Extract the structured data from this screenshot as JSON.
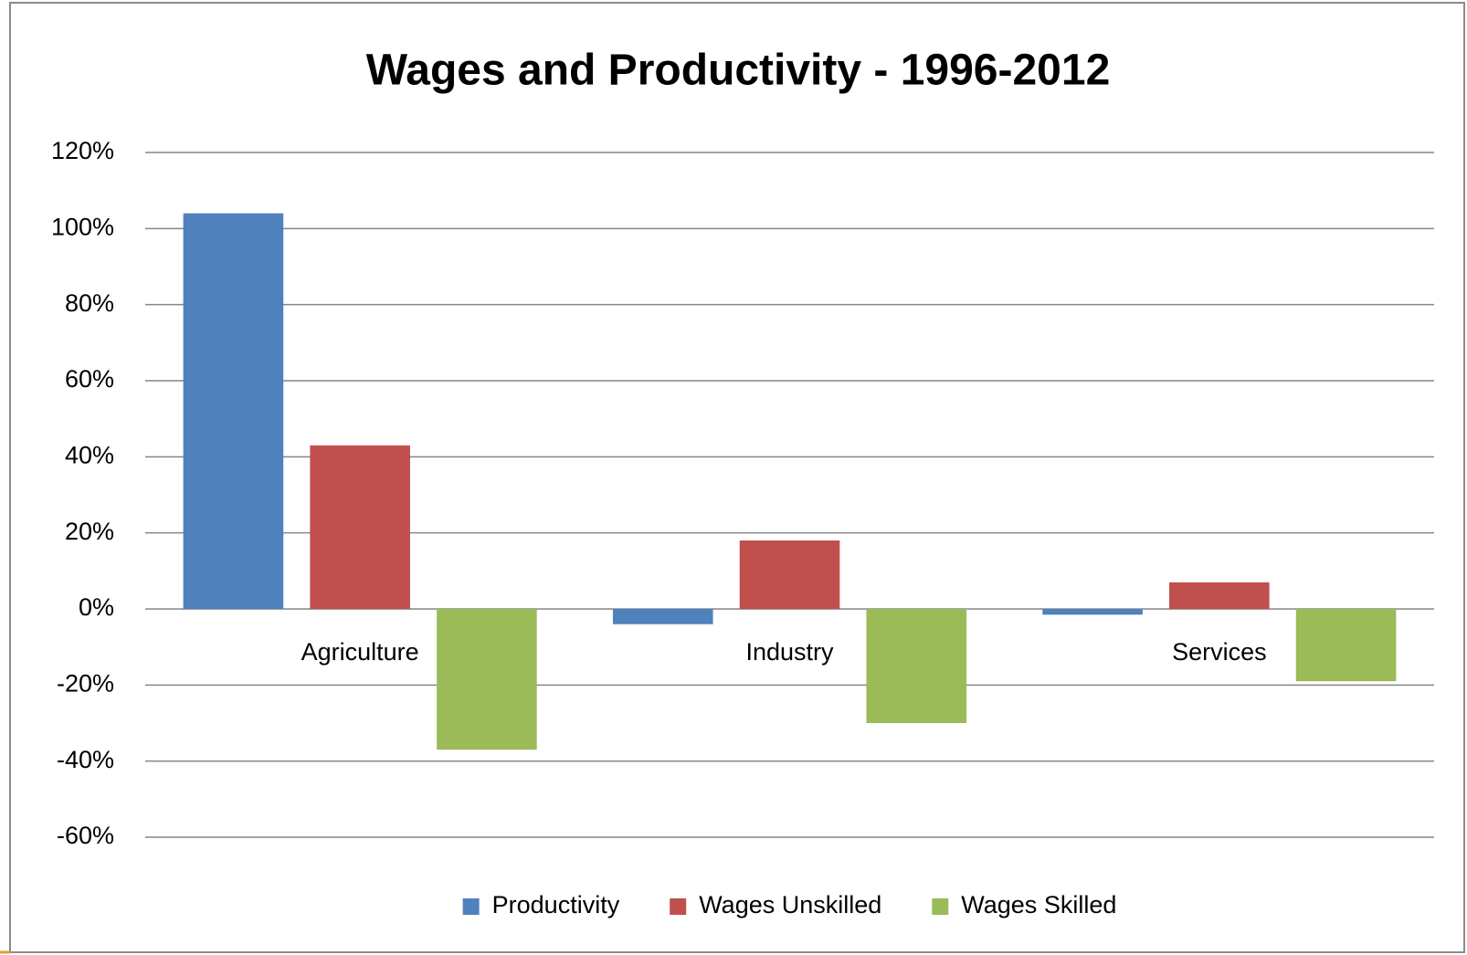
{
  "chart_data": {
    "type": "bar",
    "title": "Wages and Productivity - 1996-2012",
    "categories": [
      "Agriculture",
      "Industry",
      "Services"
    ],
    "series": [
      {
        "name": "Productivity",
        "color": "#4f81bd",
        "values": [
          104,
          -4,
          -1.5
        ]
      },
      {
        "name": "Wages Unskilled",
        "color": "#c0504d",
        "values": [
          43,
          18,
          7
        ]
      },
      {
        "name": "Wages Skilled",
        "color": "#9bbb59",
        "values": [
          -37,
          -30,
          -19
        ]
      }
    ],
    "ylim": [
      -60,
      120
    ],
    "yticks": [
      {
        "value": -60,
        "label": "-60%"
      },
      {
        "value": -40,
        "label": "-40%"
      },
      {
        "value": -20,
        "label": "-20%"
      },
      {
        "value": 0,
        "label": "0%"
      },
      {
        "value": 20,
        "label": "20%"
      },
      {
        "value": 40,
        "label": "40%"
      },
      {
        "value": 60,
        "label": "60%"
      },
      {
        "value": 80,
        "label": "80%"
      },
      {
        "value": 100,
        "label": "100%"
      },
      {
        "value": 120,
        "label": "120%"
      }
    ],
    "grid": true,
    "legend": "bottom"
  }
}
